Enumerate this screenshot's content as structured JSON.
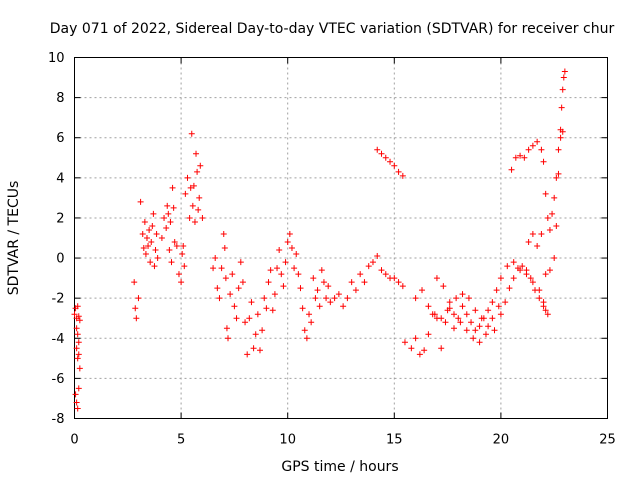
{
  "chart_data": {
    "type": "scatter",
    "title": "Day 071 of 2022, Sidereal Day-to-day VTEC variation (SDTVAR) for receiver chur",
    "xlabel": "GPS time / hours",
    "ylabel": "SDTVAR / TECUs",
    "xlim": [
      0,
      25
    ],
    "ylim": [
      -8,
      10
    ],
    "xticks": [
      0,
      5,
      10,
      15,
      20,
      25
    ],
    "xtick_labels": [
      "0",
      "5",
      "10",
      "15",
      "20",
      "25"
    ],
    "yticks": [
      -8,
      -6,
      -4,
      -2,
      0,
      2,
      4,
      6,
      8,
      10
    ],
    "ytick_labels": [
      "-8",
      "-6",
      "-4",
      "-2",
      "0",
      "2",
      "4",
      "6",
      "8",
      "10"
    ],
    "grid": true,
    "marker": "+",
    "color": "#ff0000",
    "series": [
      {
        "name": "SDTVAR",
        "x": [
          0.0,
          0.05,
          0.1,
          0.15,
          0.2,
          0.25,
          0.05,
          0.1,
          0.15,
          0.2,
          0.1,
          0.15,
          0.2,
          0.25,
          0.1,
          0.15,
          0.2,
          2.8,
          2.85,
          2.9,
          3.0,
          3.1,
          3.2,
          3.25,
          3.3,
          3.35,
          3.4,
          3.45,
          3.5,
          3.55,
          3.6,
          3.65,
          3.7,
          3.75,
          3.8,
          3.85,
          3.9,
          4.1,
          4.2,
          4.3,
          4.35,
          4.4,
          4.45,
          4.5,
          4.55,
          4.6,
          4.65,
          4.7,
          4.8,
          4.9,
          5.0,
          5.05,
          5.1,
          5.15,
          5.2,
          5.3,
          5.4,
          5.45,
          5.5,
          5.55,
          5.6,
          5.65,
          5.7,
          5.75,
          5.8,
          5.85,
          5.9,
          6.0,
          6.5,
          6.6,
          6.7,
          6.8,
          6.9,
          7.0,
          7.05,
          7.1,
          7.15,
          7.2,
          7.3,
          7.4,
          7.5,
          7.6,
          7.7,
          7.8,
          7.9,
          8.0,
          8.1,
          8.2,
          8.3,
          8.4,
          8.5,
          8.6,
          8.7,
          8.8,
          8.9,
          9.0,
          9.1,
          9.2,
          9.3,
          9.4,
          9.5,
          9.6,
          9.7,
          9.8,
          9.9,
          10.0,
          10.1,
          10.2,
          10.3,
          10.4,
          10.5,
          10.6,
          10.7,
          10.8,
          10.9,
          11.0,
          11.1,
          11.2,
          11.3,
          11.4,
          11.5,
          11.6,
          11.7,
          11.8,
          11.9,
          12.0,
          12.2,
          12.4,
          12.6,
          12.8,
          13.0,
          13.2,
          13.4,
          13.6,
          13.8,
          14.0,
          14.2,
          14.4,
          14.6,
          14.8,
          15.0,
          15.2,
          15.4,
          14.2,
          14.4,
          14.6,
          14.8,
          15.0,
          15.2,
          15.4,
          15.5,
          15.8,
          16.0,
          16.2,
          16.4,
          16.6,
          16.8,
          17.0,
          17.2,
          17.4,
          17.6,
          17.8,
          18.0,
          18.2,
          18.4,
          18.6,
          18.8,
          19.0,
          19.2,
          19.4,
          19.6,
          19.8,
          16.0,
          16.3,
          16.6,
          16.9,
          17.2,
          17.5,
          17.8,
          18.1,
          18.4,
          18.7,
          19.0,
          19.3,
          19.6,
          19.9,
          17.0,
          17.3,
          17.6,
          17.9,
          18.2,
          18.5,
          18.8,
          19.1,
          19.4,
          19.7,
          20.0,
          20.2,
          20.4,
          20.6,
          20.8,
          21.0,
          21.2,
          21.4,
          21.6,
          21.8,
          22.0,
          22.1,
          22.2,
          20.0,
          20.3,
          20.6,
          20.9,
          21.2,
          21.5,
          21.8,
          22.0,
          20.5,
          20.7,
          20.9,
          21.1,
          21.3,
          21.5,
          21.7,
          21.9,
          22.0,
          22.1,
          22.2,
          22.3,
          22.4,
          22.5,
          22.6,
          22.7,
          22.8,
          22.9,
          21.3,
          21.5,
          21.7,
          21.9,
          22.1,
          22.3,
          22.5,
          22.6,
          22.7,
          22.8,
          22.85,
          22.9,
          22.95,
          23.0
        ],
        "y": [
          -2.8,
          -2.5,
          -3.0,
          -2.4,
          -2.9,
          -3.1,
          -6.8,
          -7.2,
          -7.5,
          -6.5,
          -4.5,
          -5.0,
          -4.8,
          -5.5,
          -3.5,
          -3.8,
          -4.2,
          -1.2,
          -2.5,
          -3.0,
          -2.0,
          2.8,
          1.2,
          0.5,
          1.8,
          0.2,
          1.0,
          0.6,
          1.4,
          -0.2,
          0.8,
          1.6,
          2.2,
          -0.4,
          0.4,
          1.2,
          0.0,
          1.0,
          2.0,
          1.5,
          2.6,
          2.2,
          0.4,
          1.8,
          -0.2,
          3.5,
          2.5,
          0.8,
          0.6,
          -0.8,
          -1.2,
          0.2,
          0.6,
          -0.4,
          3.2,
          4.0,
          2.0,
          3.5,
          6.2,
          2.6,
          3.6,
          1.8,
          5.2,
          4.3,
          2.4,
          3.0,
          4.6,
          2.0,
          -0.5,
          0.0,
          -1.5,
          -2.0,
          -0.5,
          1.2,
          0.5,
          -1.0,
          -3.5,
          -4.0,
          -1.8,
          -0.8,
          -2.4,
          -3.0,
          -1.5,
          -0.2,
          -1.2,
          -3.2,
          -4.8,
          -3.0,
          -2.2,
          -4.5,
          -3.8,
          -2.8,
          -4.6,
          -3.6,
          -2.0,
          -2.5,
          -1.2,
          -0.6,
          -2.6,
          -1.8,
          -0.5,
          0.4,
          -0.8,
          -1.4,
          -0.2,
          0.8,
          1.2,
          0.5,
          -0.5,
          0.2,
          -0.8,
          -1.5,
          -2.5,
          -3.6,
          -4.0,
          -2.8,
          -3.2,
          -1.0,
          -2.0,
          -1.6,
          -2.4,
          -0.6,
          -1.2,
          -2.0,
          -1.4,
          -2.2,
          -2.0,
          -1.8,
          -2.4,
          -2.0,
          -1.2,
          -1.6,
          -0.8,
          -1.2,
          -0.4,
          -0.2,
          0.1,
          -0.6,
          -0.8,
          -1.0,
          -1.0,
          -1.2,
          -1.4,
          5.4,
          5.2,
          5.0,
          4.8,
          4.6,
          4.3,
          4.1,
          -4.2,
          -4.5,
          -4.0,
          -4.8,
          -4.6,
          -3.8,
          -2.8,
          -3.0,
          -4.5,
          -3.2,
          -2.5,
          -3.5,
          -3.0,
          -2.4,
          -2.8,
          -3.2,
          -3.6,
          -3.4,
          -3.0,
          -2.6,
          -2.2,
          -1.6,
          -2.0,
          -1.6,
          -2.4,
          -2.8,
          -3.0,
          -2.6,
          -2.8,
          -3.2,
          -3.6,
          -4.0,
          -4.2,
          -3.8,
          -3.0,
          -2.4,
          -1.0,
          -1.4,
          -2.2,
          -2.0,
          -1.8,
          -2.0,
          -2.6,
          -3.0,
          -3.4,
          -3.6,
          -2.8,
          -2.2,
          -1.5,
          -1.0,
          -0.5,
          -0.4,
          -0.6,
          -1.0,
          -1.6,
          -2.0,
          -2.4,
          -2.6,
          -2.8,
          -1.0,
          -0.4,
          -0.2,
          -0.6,
          -0.8,
          -1.2,
          -1.6,
          -2.2,
          4.4,
          5.0,
          5.1,
          5.0,
          5.4,
          5.6,
          5.8,
          5.4,
          4.8,
          3.2,
          2.0,
          1.4,
          2.2,
          3.0,
          4.0,
          5.4,
          6.0,
          6.3,
          0.8,
          1.2,
          0.6,
          1.2,
          -0.8,
          -0.6,
          0.0,
          1.6,
          4.2,
          6.4,
          7.5,
          8.4,
          9.0,
          9.3
        ]
      }
    ]
  }
}
